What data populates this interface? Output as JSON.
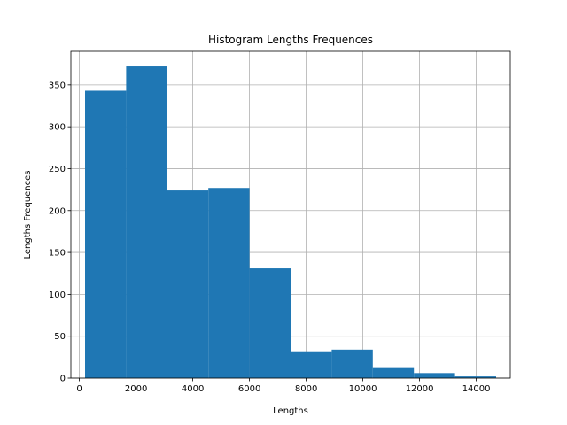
{
  "chart_data": {
    "type": "bar",
    "subtype": "histogram",
    "title": "Histogram Lengths Frequences",
    "xlabel": "Lengths",
    "ylabel": "Lengths Frequences",
    "bins": [
      {
        "start": 200,
        "end": 1650,
        "count": 343
      },
      {
        "start": 1650,
        "end": 3100,
        "count": 372
      },
      {
        "start": 3100,
        "end": 4550,
        "count": 224
      },
      {
        "start": 4550,
        "end": 6000,
        "count": 227
      },
      {
        "start": 6000,
        "end": 7450,
        "count": 131
      },
      {
        "start": 7450,
        "end": 8900,
        "count": 32
      },
      {
        "start": 8900,
        "end": 10350,
        "count": 34
      },
      {
        "start": 10350,
        "end": 11800,
        "count": 12
      },
      {
        "start": 11800,
        "end": 13250,
        "count": 6
      },
      {
        "start": 13250,
        "end": 14700,
        "count": 2
      }
    ],
    "xlim": [
      -300,
      15200
    ],
    "ylim": [
      0,
      390
    ],
    "xticks": [
      0,
      2000,
      4000,
      6000,
      8000,
      10000,
      12000,
      14000
    ],
    "xtick_labels": [
      "0",
      "2000",
      "4000",
      "6000",
      "8000",
      "10000",
      "12000",
      "14000"
    ],
    "yticks": [
      0,
      50,
      100,
      150,
      200,
      250,
      300,
      350
    ],
    "ytick_labels": [
      "0",
      "50",
      "100",
      "150",
      "200",
      "250",
      "300",
      "350"
    ],
    "grid": true,
    "bar_color": "#1f77b4",
    "grid_color": "#b0b0b0"
  }
}
